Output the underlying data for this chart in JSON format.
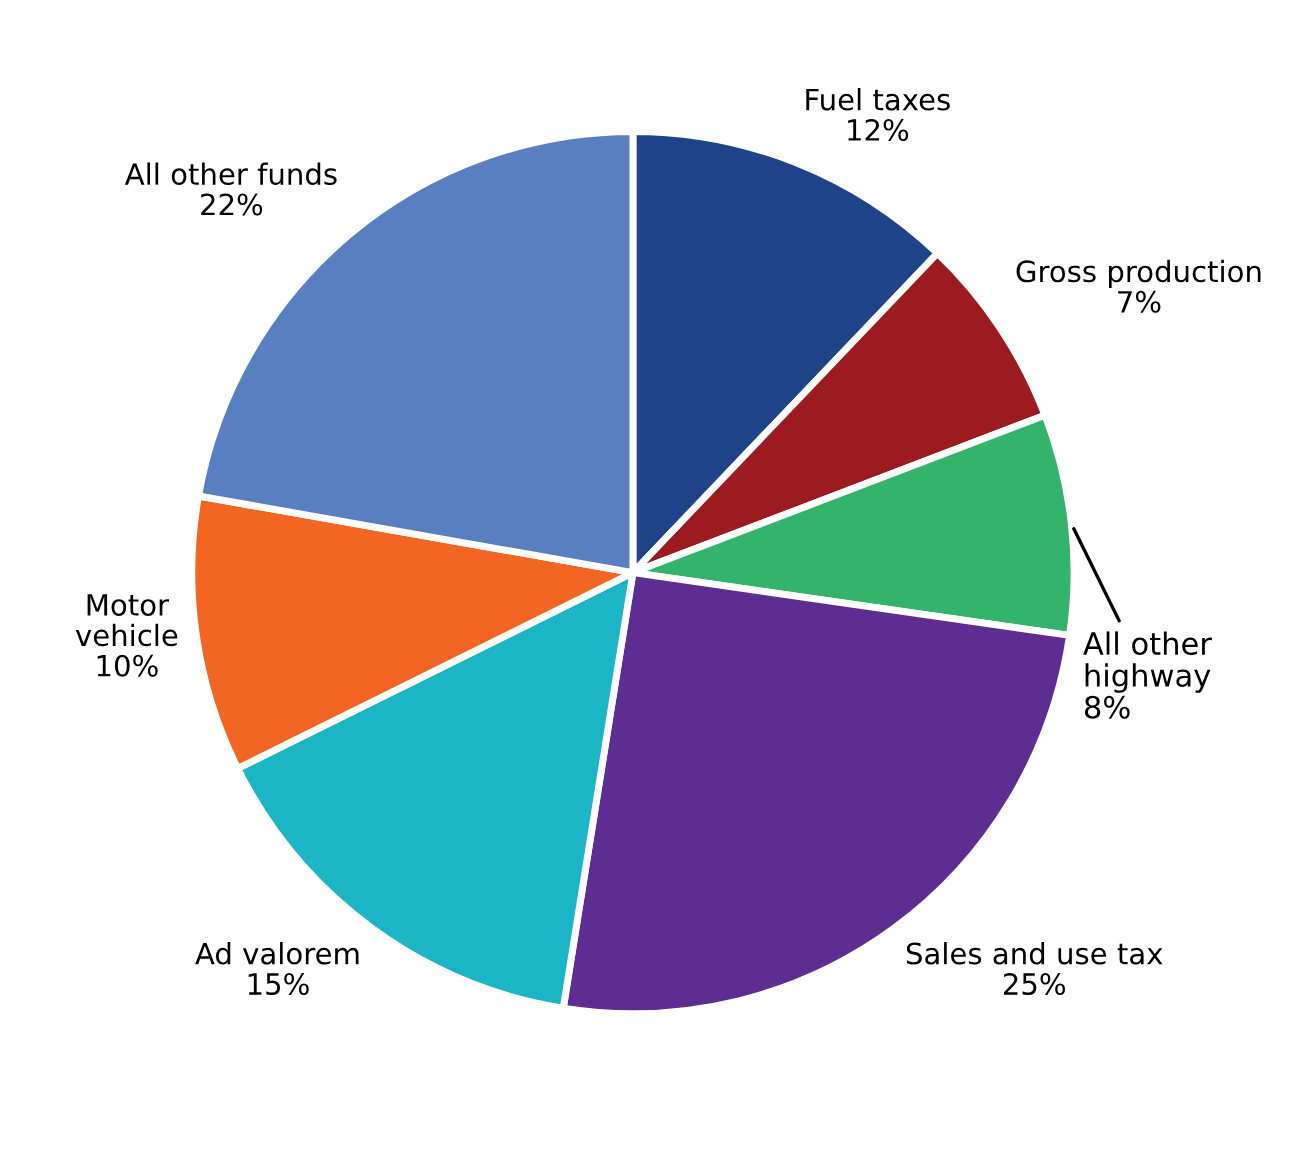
{
  "chart_data": {
    "type": "pie",
    "categories": [
      "Fuel taxes",
      "Gross production",
      "All other\nhighway",
      "Sales and use tax",
      "Ad valorem",
      "Motor\nvehicle",
      "All other funds"
    ],
    "values": [
      12,
      7,
      8,
      25,
      15,
      10,
      22
    ],
    "value_labels": [
      "12%",
      "7%",
      "8%",
      "25%",
      "15%",
      "10%",
      "22%"
    ],
    "colors": [
      "#1f4389",
      "#9b1b20",
      "#33b36b",
      "#5e2d91",
      "#1bb5c6",
      "#f26522",
      "#5a7fc0"
    ]
  }
}
